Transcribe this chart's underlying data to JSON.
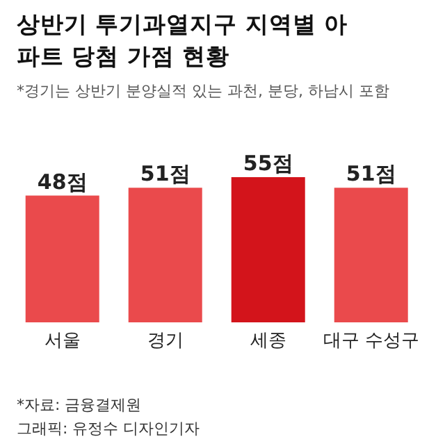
{
  "chart_data": {
    "type": "bar",
    "title": "상반기 투기과열지구 지역별 아파트 당첨 가점 현황",
    "subtitle": "*경기는 상반기 분양실적 있는 과천, 분당, 하남시 포함",
    "categories": [
      "서울",
      "경기",
      "세종",
      "대구 수성구"
    ],
    "values": [
      48,
      51,
      55,
      51
    ],
    "value_labels": [
      "48점",
      "51점",
      "55점",
      "51점"
    ],
    "colors": [
      "#ea4a4c",
      "#ea4a4c",
      "#d3141b",
      "#ea4a4c"
    ],
    "annotations": [
      "*자료: 금융결제원",
      "그래픽: 유정수 디자인기자"
    ]
  }
}
